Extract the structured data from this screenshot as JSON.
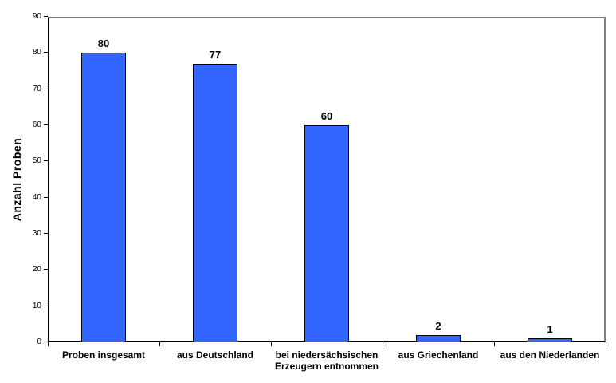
{
  "chart_data": {
    "type": "bar",
    "categories": [
      "Proben insgesamt",
      "aus Deutschland",
      "bei niedersächsischen Erzeugern entnommen",
      "aus Griechenland",
      "aus den Niederlanden"
    ],
    "values": [
      80,
      77,
      60,
      2,
      1
    ],
    "value_labels": [
      "80",
      "77",
      "60",
      "2",
      "1"
    ],
    "title": "",
    "xlabel": "",
    "ylabel": "Anzahl Proben",
    "ylim": [
      0,
      90
    ],
    "ytick_step": 10,
    "ytick_labels": [
      "0",
      "10",
      "20",
      "30",
      "40",
      "50",
      "60",
      "70",
      "80",
      "90"
    ],
    "grid": false,
    "legend_position": "none",
    "colors": {
      "bar_fill": "#3366FF",
      "bar_border": "#000000",
      "axis": "#000000",
      "frame": "#808080",
      "background": "#FFFFFF",
      "text": "#000000"
    }
  }
}
